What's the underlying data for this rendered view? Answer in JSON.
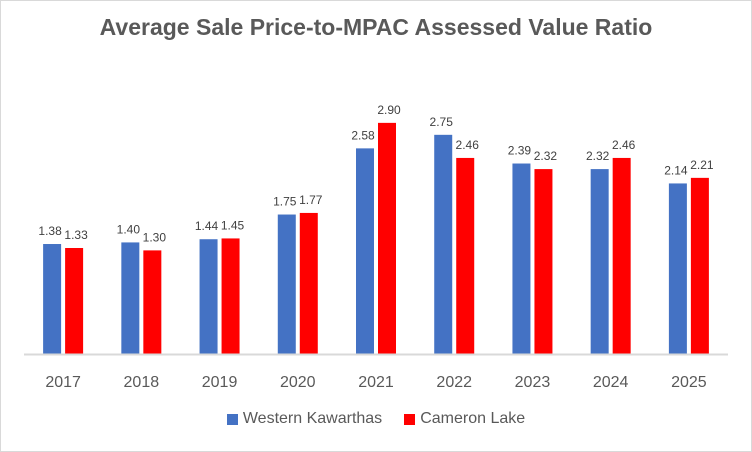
{
  "chart_data": {
    "type": "bar",
    "title": "Average Sale Price-to-MPAC Assessed Value Ratio",
    "xlabel": "",
    "ylabel": "",
    "categories": [
      "2017",
      "2018",
      "2019",
      "2020",
      "2021",
      "2022",
      "2023",
      "2024",
      "2025"
    ],
    "series": [
      {
        "name": "Western Kawarthas",
        "color": "#4472c4",
        "values": [
          1.38,
          1.4,
          1.44,
          1.75,
          2.58,
          2.75,
          2.39,
          2.32,
          2.14
        ],
        "labels": [
          "1.38",
          "1.40",
          "1.44",
          "1.75",
          "2.58",
          "2.75",
          "2.39",
          "2.32",
          "2.14"
        ]
      },
      {
        "name": "Cameron Lake",
        "color": "#ff0000",
        "values": [
          1.33,
          1.3,
          1.45,
          1.77,
          2.9,
          2.46,
          2.32,
          2.46,
          2.21
        ],
        "labels": [
          "1.33",
          "1.30",
          "1.45",
          "1.77",
          "2.90",
          "2.46",
          "2.32",
          "2.46",
          "2.21"
        ]
      }
    ],
    "ylim": [
      0,
      3.3
    ],
    "grid": false,
    "y_axis_visible": false,
    "legend_position": "bottom"
  }
}
